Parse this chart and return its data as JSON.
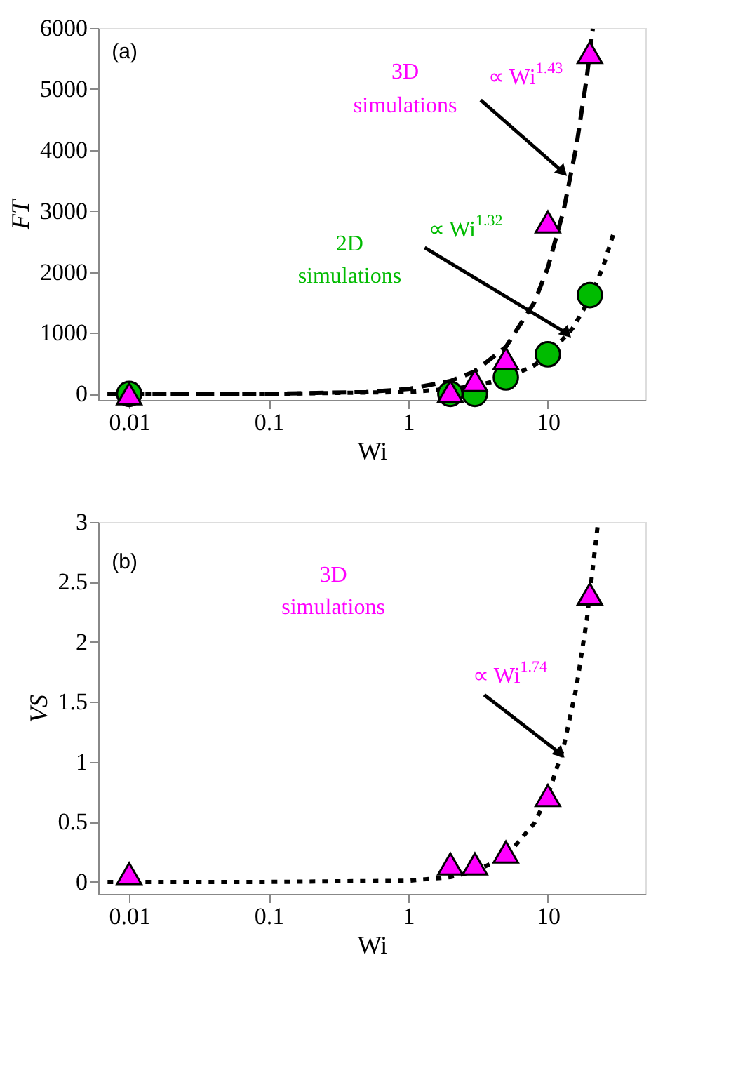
{
  "chart_data": [
    {
      "type": "scatter",
      "xlabel": "Wi",
      "ylabel": "FT",
      "log": "x",
      "xlim": [
        0.006,
        50
      ],
      "xticks": [
        0.01,
        0.1,
        1,
        10
      ],
      "ylim": [
        -100,
        6000
      ],
      "yticks": [
        0,
        1000,
        2000,
        3000,
        4000,
        5000,
        6000
      ],
      "grid": false,
      "annotations": [
        "(a)",
        "3D",
        "simulations",
        {
          "text": "∝ Wi$^{1.43}$",
          "x": 12.8,
          "y": 3640
        },
        "2D",
        "simulations",
        {
          "text": "∝ Wi$^{1.32}$",
          "x": 13.7,
          "y": 990
        }
      ],
      "series": [
        {
          "type": "line",
          "color": "#000000",
          "line_style": "dashed",
          "marker": "none",
          "x": [
            0.007,
            0.01,
            0.1,
            0.5,
            1,
            2,
            3,
            5,
            8,
            10,
            13,
            16,
            19,
            21
          ],
          "values": [
            0,
            0,
            0,
            30,
            80,
            210,
            370,
            770,
            1500,
            2070,
            3020,
            4060,
            5190,
            5990
          ]
        },
        {
          "type": "line",
          "color": "#000000",
          "line_style": "dotted",
          "marker": "none",
          "x": [
            0.007,
            0.01,
            0.1,
            1,
            2,
            3,
            5,
            8,
            10,
            15,
            20,
            25,
            30
          ],
          "values": [
            0,
            0,
            0,
            30,
            80,
            130,
            250,
            470,
            630,
            1070,
            1560,
            2100,
            2680
          ]
        },
        {
          "type": "scatter",
          "color": "#00bb00",
          "marker": "circle",
          "x": [
            0.01,
            2,
            3,
            5,
            10,
            20
          ],
          "values": [
            0,
            0,
            0,
            270,
            650,
            1620
          ]
        },
        {
          "type": "scatter",
          "color": "#ff00ff",
          "marker": "triangle",
          "x": [
            0.01,
            2,
            3,
            5,
            10,
            20
          ],
          "values": [
            0,
            40,
            220,
            580,
            2820,
            5600
          ]
        }
      ]
    },
    {
      "type": "scatter",
      "xlabel": "Wi",
      "ylabel": "VS",
      "log": "x",
      "xlim": [
        0.006,
        50
      ],
      "xticks": [
        0.01,
        0.1,
        1,
        10
      ],
      "ylim": [
        -0.1,
        3
      ],
      "yticks": [
        0,
        0.5,
        1,
        1.5,
        2,
        2.5,
        3
      ],
      "grid": false,
      "annotations": [
        "(b)",
        "3D",
        "simulations",
        {
          "text": "∝ Wi$^{1.74}$",
          "x": 12.3,
          "y": 1.07
        }
      ],
      "series": [
        {
          "type": "line",
          "color": "#000000",
          "line_style": "dotted",
          "marker": "none",
          "x": [
            0.007,
            0.01,
            0.1,
            1,
            2,
            3,
            5,
            8,
            10,
            13,
            16,
            19,
            22.8
          ],
          "values": [
            0,
            0,
            0,
            0.01,
            0.04,
            0.09,
            0.21,
            0.49,
            0.72,
            1.13,
            1.62,
            2.18,
            2.98
          ]
        },
        {
          "type": "scatter",
          "color": "#ff00ff",
          "marker": "triangle",
          "x": [
            0.01,
            2,
            3,
            5,
            10,
            20
          ],
          "values": [
            0.07,
            0.15,
            0.15,
            0.25,
            0.72,
            2.4
          ]
        }
      ]
    }
  ]
}
